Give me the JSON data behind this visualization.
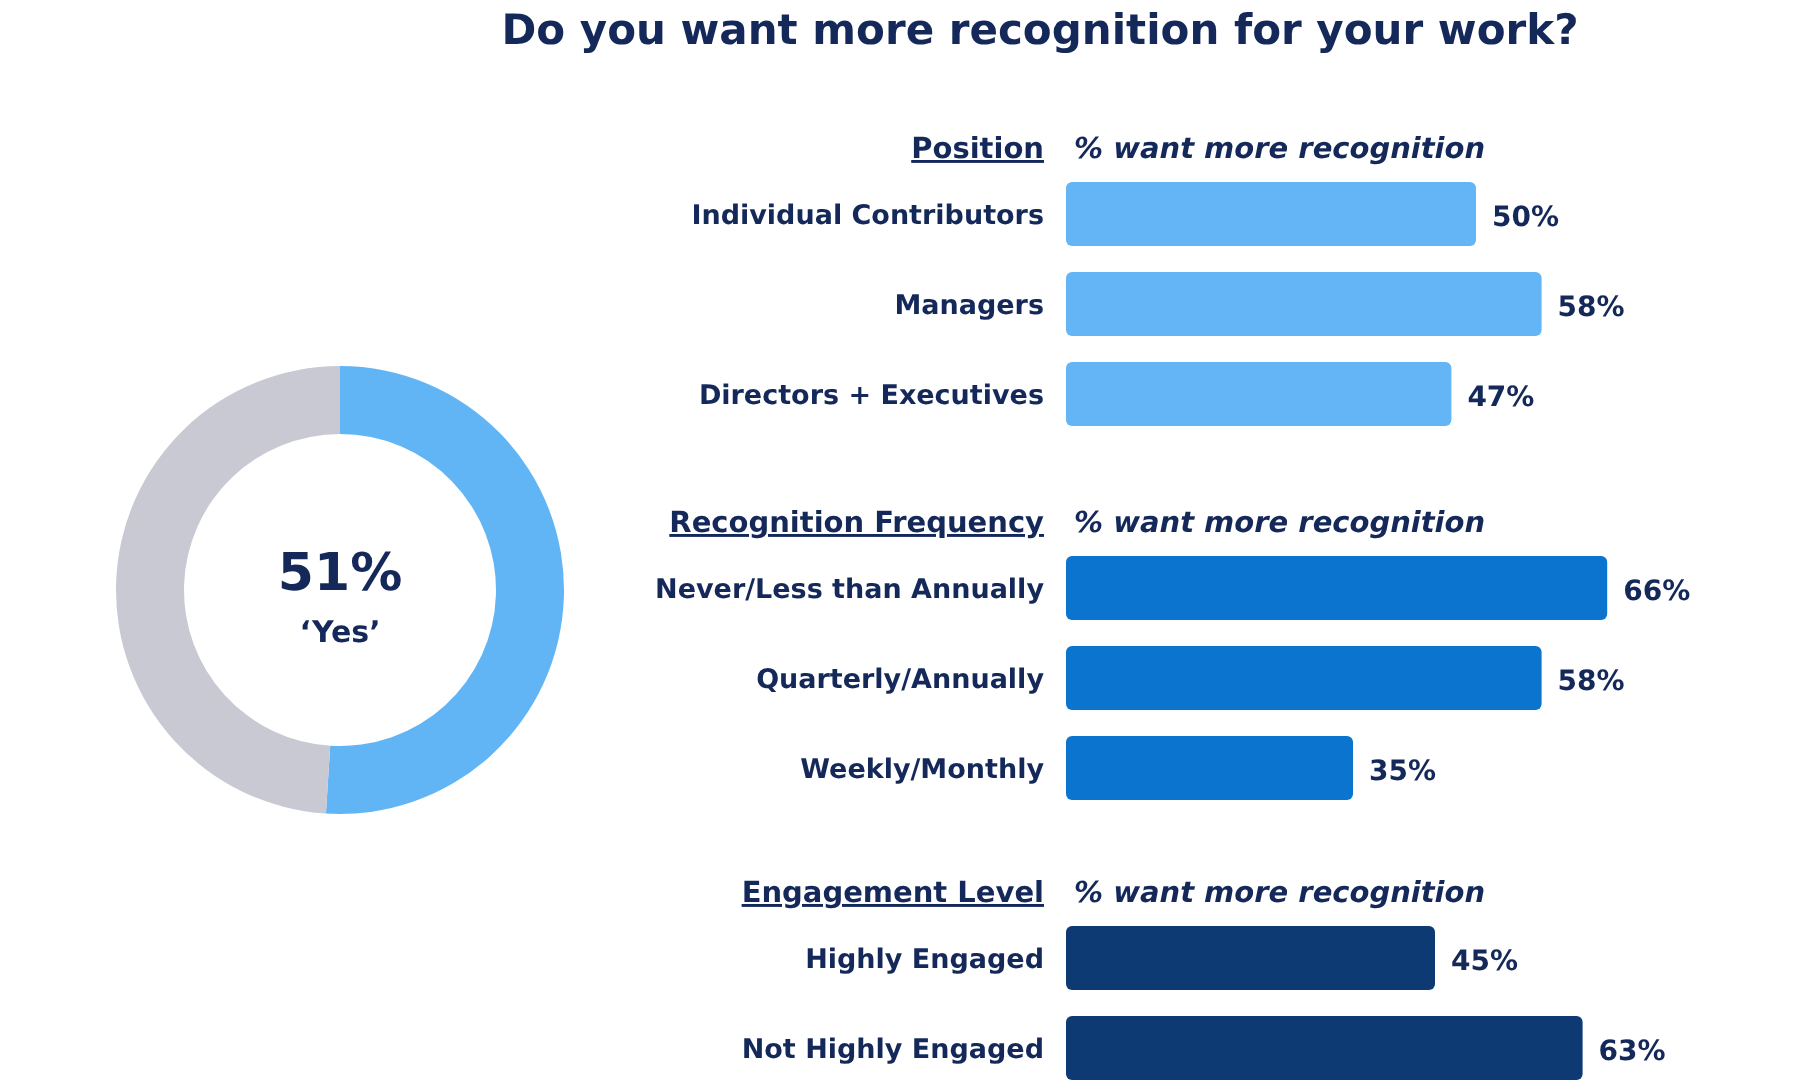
{
  "chart_data": [
    {
      "type": "donut",
      "title": "Do you want more recognition for your work?",
      "categories": [
        "‘Yes’",
        null
      ],
      "values": [
        51,
        49
      ],
      "colors": [
        "#62b5f5",
        "#c8c9d3"
      ],
      "value_labels": [
        "51%",
        null
      ]
    },
    {
      "type": "bar",
      "orientation": "horizontal",
      "title": "Position",
      "subtitle": "% want more recognition",
      "categories": [
        "Individual Contributors",
        "Managers",
        "Directors + Executives"
      ],
      "values": [
        50,
        58,
        47
      ],
      "color": "#64b5f6",
      "value_labels": [
        "50%",
        "58%",
        "47%"
      ]
    },
    {
      "type": "bar",
      "orientation": "horizontal",
      "title": "Recognition Frequency",
      "subtitle": "% want more recognition",
      "categories": [
        "Never/Less than Annually",
        "Quarterly/Annually",
        "Weekly/Monthly"
      ],
      "values": [
        66,
        58,
        35
      ],
      "color": "#0a74cf",
      "value_labels": [
        "66%",
        "58%",
        "35%"
      ]
    },
    {
      "type": "bar",
      "orientation": "horizontal",
      "title": "Engagement Level",
      "subtitle": "% want more recognition",
      "categories": [
        "Highly Engaged",
        "Not Highly Engaged"
      ],
      "values": [
        45,
        63
      ],
      "color": "#0d3a73",
      "value_labels": [
        "45%",
        "63%"
      ]
    }
  ]
}
